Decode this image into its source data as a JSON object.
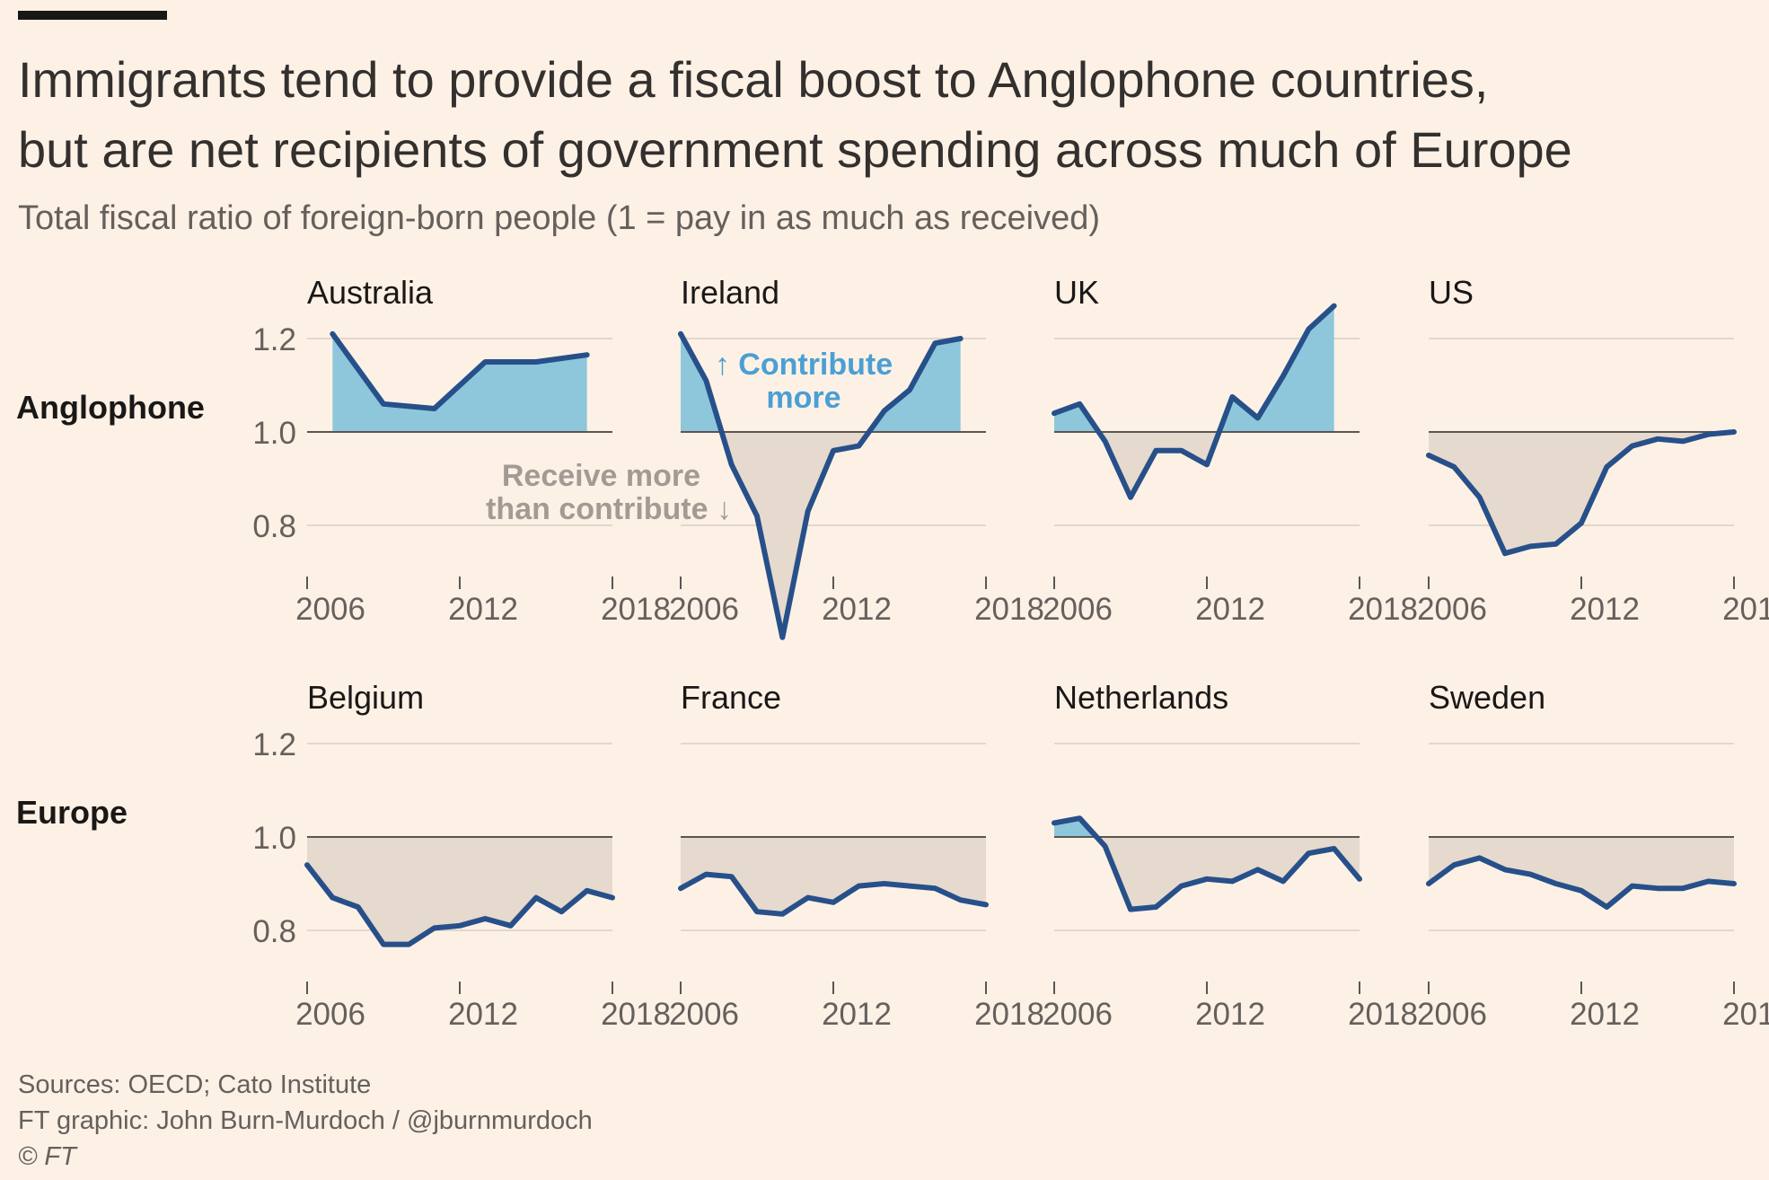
{
  "header": {
    "title_line1": "Immigrants tend to provide a fiscal boost to Anglophone countries,",
    "title_line2": "but are net recipients of government spending across much of Europe",
    "subtitle": "Total fiscal ratio of foreign-born people (1 = pay in as much as received)"
  },
  "footer": {
    "sources": "Sources: OECD; Cato Institute",
    "credit": "FT graphic: John Burn-Murdoch / @jburnmurdoch",
    "copyright": "© FT"
  },
  "colors": {
    "line": "#27508a",
    "area_above": "#8ec7dc",
    "area_below": "#e6d9cd",
    "baseline": "#5a5652",
    "grid": "#e3d6cb",
    "tick_text": "#66605c",
    "annotation_above": "#4a9fd4",
    "annotation_below": "#a39b93"
  },
  "annotations": {
    "contribute_line1": "↑ Contribute",
    "contribute_line2": "more",
    "receive_line1": "Receive more",
    "receive_line2": "than contribute ↓"
  },
  "chart_data": {
    "type": "area",
    "layout": "small-multiples",
    "x_ticks": [
      "2006",
      "2012",
      "2018"
    ],
    "xlim": [
      2006,
      2018
    ],
    "y_ticks": [
      "1.2",
      "1.0",
      "0.8"
    ],
    "ylim": [
      0.7,
      1.25
    ],
    "baseline": 1.0,
    "groups": [
      {
        "label": "Anglophone",
        "panels": [
          {
            "name": "Australia",
            "x": [
              2007,
              2009,
              2011,
              2013,
              2015,
              2017
            ],
            "y": [
              1.21,
              1.06,
              1.05,
              1.15,
              1.15,
              1.165
            ]
          },
          {
            "name": "Ireland",
            "x": [
              2006,
              2007,
              2008,
              2009,
              2010,
              2011,
              2012,
              2013,
              2014,
              2015,
              2016,
              2017
            ],
            "y": [
              1.21,
              1.11,
              0.93,
              0.82,
              0.56,
              0.83,
              0.96,
              0.97,
              1.045,
              1.09,
              1.19,
              1.2
            ]
          },
          {
            "name": "UK",
            "x": [
              2006,
              2007,
              2008,
              2009,
              2010,
              2011,
              2012,
              2013,
              2014,
              2015,
              2016,
              2017
            ],
            "y": [
              1.04,
              1.06,
              0.98,
              0.86,
              0.96,
              0.96,
              0.93,
              1.075,
              1.03,
              1.12,
              1.22,
              1.27
            ]
          },
          {
            "name": "US",
            "x": [
              2006,
              2007,
              2008,
              2009,
              2010,
              2011,
              2012,
              2013,
              2014,
              2015,
              2016,
              2017,
              2018
            ],
            "y": [
              0.95,
              0.925,
              0.86,
              0.74,
              0.755,
              0.76,
              0.805,
              0.925,
              0.97,
              0.985,
              0.98,
              0.995,
              1.0
            ]
          }
        ]
      },
      {
        "label": "Europe",
        "panels": [
          {
            "name": "Belgium",
            "x": [
              2006,
              2007,
              2008,
              2009,
              2010,
              2011,
              2012,
              2013,
              2014,
              2015,
              2016,
              2017,
              2018
            ],
            "y": [
              0.94,
              0.87,
              0.85,
              0.77,
              0.77,
              0.805,
              0.81,
              0.825,
              0.81,
              0.87,
              0.84,
              0.885,
              0.87
            ]
          },
          {
            "name": "France",
            "x": [
              2006,
              2007,
              2008,
              2009,
              2010,
              2011,
              2012,
              2013,
              2014,
              2015,
              2016,
              2017,
              2018
            ],
            "y": [
              0.89,
              0.92,
              0.915,
              0.84,
              0.835,
              0.87,
              0.86,
              0.895,
              0.9,
              0.895,
              0.89,
              0.865,
              0.855
            ]
          },
          {
            "name": "Netherlands",
            "x": [
              2006,
              2007,
              2008,
              2009,
              2010,
              2011,
              2012,
              2013,
              2014,
              2015,
              2016,
              2017,
              2018
            ],
            "y": [
              1.03,
              1.04,
              0.98,
              0.845,
              0.85,
              0.895,
              0.91,
              0.905,
              0.93,
              0.905,
              0.965,
              0.975,
              0.91
            ]
          },
          {
            "name": "Sweden",
            "x": [
              2006,
              2007,
              2008,
              2009,
              2010,
              2011,
              2012,
              2013,
              2014,
              2015,
              2016,
              2017,
              2018
            ],
            "y": [
              0.9,
              0.94,
              0.955,
              0.93,
              0.92,
              0.9,
              0.885,
              0.85,
              0.895,
              0.89,
              0.89,
              0.905,
              0.9
            ]
          }
        ]
      }
    ]
  }
}
